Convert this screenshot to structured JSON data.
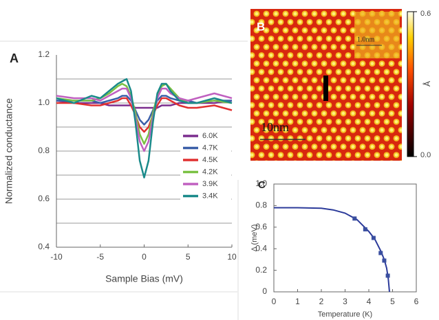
{
  "chart_data": [
    {
      "type": "line",
      "panel": "A",
      "xlabel": "Sample Bias (mV)",
      "ylabel": "Normalized conductance",
      "x": [
        -10,
        -8,
        -6,
        -5,
        -4,
        -3,
        -2.5,
        -2,
        -1.5,
        -1,
        -0.5,
        0,
        0.5,
        1,
        1.5,
        2,
        2.5,
        3,
        4,
        5,
        6,
        8,
        10
      ],
      "series": [
        {
          "name": "6.0K",
          "color": "#7b2d8e",
          "values": [
            1.01,
            1.0,
            1.0,
            1.0,
            0.99,
            0.99,
            0.99,
            0.99,
            0.99,
            0.98,
            0.98,
            0.98,
            0.98,
            0.98,
            0.98,
            0.99,
            0.99,
            0.99,
            1.0,
            1.0,
            1.0,
            1.0,
            1.01
          ]
        },
        {
          "name": "4.7K",
          "color": "#3a5fa8",
          "values": [
            1.01,
            1.01,
            1.01,
            1.0,
            1.01,
            1.02,
            1.03,
            1.03,
            1.01,
            0.97,
            0.93,
            0.91,
            0.93,
            0.97,
            1.01,
            1.03,
            1.03,
            1.02,
            1.01,
            1.01,
            1.0,
            1.01,
            1.01
          ]
        },
        {
          "name": "4.5K",
          "color": "#e03030",
          "values": [
            1.0,
            1.0,
            0.99,
            0.99,
            1.0,
            1.01,
            1.02,
            1.02,
            0.99,
            0.95,
            0.9,
            0.88,
            0.9,
            0.95,
            0.99,
            1.02,
            1.02,
            1.01,
            0.99,
            0.98,
            0.98,
            0.99,
            0.97
          ]
        },
        {
          "name": "4.2K",
          "color": "#7ac143",
          "values": [
            1.02,
            1.01,
            1.01,
            1.02,
            1.04,
            1.07,
            1.08,
            1.07,
            1.03,
            0.96,
            0.87,
            0.83,
            0.87,
            0.96,
            1.03,
            1.07,
            1.08,
            1.06,
            1.02,
            1.0,
            1.0,
            1.01,
            1.0
          ]
        },
        {
          "name": "3.9K",
          "color": "#c060c0",
          "values": [
            1.03,
            1.02,
            1.02,
            1.01,
            1.03,
            1.05,
            1.06,
            1.06,
            1.02,
            0.94,
            0.84,
            0.8,
            0.84,
            0.94,
            1.02,
            1.06,
            1.06,
            1.04,
            1.02,
            1.01,
            1.02,
            1.04,
            1.02
          ]
        },
        {
          "name": "3.4K",
          "color": "#1a8a8a",
          "values": [
            1.02,
            1.0,
            1.03,
            1.02,
            1.05,
            1.08,
            1.09,
            1.1,
            1.05,
            0.92,
            0.76,
            0.69,
            0.76,
            0.92,
            1.04,
            1.08,
            1.08,
            1.05,
            1.01,
            1.0,
            1.0,
            1.02,
            1.0
          ]
        }
      ],
      "xlim": [
        -10,
        10
      ],
      "xticks": [
        -10,
        -5,
        0,
        5,
        10
      ],
      "ylim": [
        0.4,
        1.2
      ],
      "yticks": [
        0.4,
        0.6,
        0.8,
        {
          "value": 1,
          "label": "1.0"
        },
        1.2
      ],
      "grid_lines": [
        0.5,
        0.6,
        0.7,
        0.8,
        0.9,
        1,
        1.1
      ],
      "legend": "lower-right"
    },
    {
      "type": "image",
      "panel": "B",
      "annotations": [
        "10nm",
        "1.0nm"
      ],
      "colorbar_label": "Å",
      "clim": [
        0,
        0.6
      ],
      "cticks": [
        {
          "value": 0,
          "label": "0.0"
        },
        0.6
      ]
    },
    {
      "type": "scatter",
      "panel": "C",
      "xlabel": "Temperature (K)",
      "ylabel": "Δ (meV)",
      "points": {
        "color": "#3a4fa0",
        "x": [
          3.4,
          3.85,
          4.2,
          4.5,
          4.65,
          4.8
        ],
        "values": [
          0.68,
          0.58,
          0.5,
          0.36,
          0.29,
          0.15
        ]
      },
      "fit": {
        "color": "#2b3a9a",
        "x": [
          0,
          1,
          2,
          2.5,
          3,
          3.5,
          4,
          4.25,
          4.5,
          4.65,
          4.75,
          4.82,
          4.87
        ],
        "values": [
          0.78,
          0.78,
          0.775,
          0.76,
          0.73,
          0.67,
          0.56,
          0.49,
          0.38,
          0.3,
          0.22,
          0.12,
          0
        ]
      },
      "xlim": [
        0,
        6
      ],
      "xticks": [
        0,
        1,
        2,
        3,
        4,
        5,
        6
      ],
      "ylim": [
        0,
        1
      ],
      "yticks": [
        0,
        0.2,
        0.4,
        0.6,
        0.8,
        {
          "value": 1,
          "label": "1.0"
        }
      ]
    }
  ]
}
